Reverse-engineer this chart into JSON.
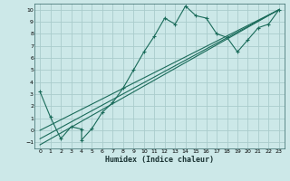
{
  "title": "",
  "xlabel": "Humidex (Indice chaleur)",
  "ylabel": "",
  "bg_color": "#cce8e8",
  "grid_color": "#b0d4d4",
  "line_color": "#1a6b5a",
  "xlim": [
    -0.5,
    23.5
  ],
  "ylim": [
    -1.5,
    10.5
  ],
  "xticks": [
    0,
    1,
    2,
    3,
    4,
    5,
    6,
    7,
    8,
    9,
    10,
    11,
    12,
    13,
    14,
    15,
    16,
    17,
    18,
    19,
    20,
    21,
    22,
    23
  ],
  "yticks": [
    -1,
    0,
    1,
    2,
    3,
    4,
    5,
    6,
    7,
    8,
    9,
    10
  ],
  "series1_x": [
    0,
    1,
    2,
    3,
    4,
    4,
    5,
    6,
    7,
    8,
    9,
    10,
    11,
    12,
    13,
    14,
    15,
    16,
    17,
    18,
    19,
    20,
    21,
    22,
    23
  ],
  "series1_y": [
    3.2,
    1.1,
    -0.7,
    0.3,
    0.1,
    -0.8,
    0.15,
    1.5,
    2.3,
    3.5,
    5.0,
    6.5,
    7.8,
    9.3,
    8.8,
    10.3,
    9.5,
    9.3,
    8.0,
    7.7,
    6.5,
    7.5,
    8.5,
    8.8,
    10.0
  ],
  "line1_x": [
    0,
    23
  ],
  "line1_y": [
    -1.2,
    10.0
  ],
  "line2_x": [
    0,
    23
  ],
  "line2_y": [
    -0.7,
    10.0
  ],
  "line3_x": [
    0,
    23
  ],
  "line3_y": [
    0.0,
    10.0
  ]
}
